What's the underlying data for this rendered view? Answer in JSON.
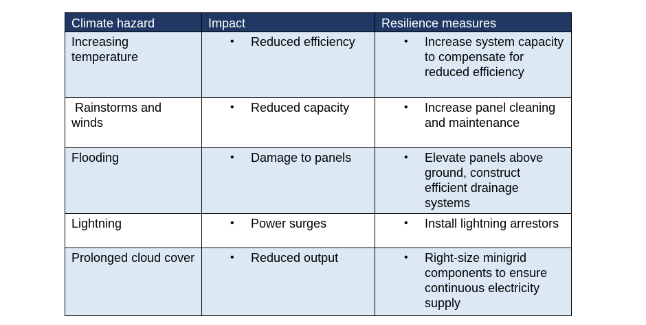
{
  "table": {
    "headers": [
      "Climate hazard",
      "Impact",
      "Resilience measures"
    ],
    "bullet_glyph": "•",
    "rows": [
      {
        "hazard": "Increasing temperature",
        "impact": "Reduced efficiency",
        "measure": "Increase system capacity to compensate for reduced efficiency"
      },
      {
        "hazard": " Rainstorms and winds",
        "impact": "Reduced capacity",
        "measure": "Increase panel cleaning and maintenance"
      },
      {
        "hazard": "Flooding",
        "impact": "Damage to panels",
        "measure": "Elevate panels above ground, construct efficient drainage systems"
      },
      {
        "hazard": "Lightning",
        "impact": "Power surges",
        "measure": "Install lightning arrestors"
      },
      {
        "hazard": "Prolonged cloud cover",
        "impact": "Reduced output",
        "measure": "Right-size minigrid components to ensure continuous electricity supply"
      }
    ]
  },
  "colors": {
    "header_bg": "#1f3864",
    "header_text": "#ffffff",
    "shaded_row_bg": "#dce9f5",
    "plain_row_bg": "#ffffff",
    "border": "#000000"
  }
}
